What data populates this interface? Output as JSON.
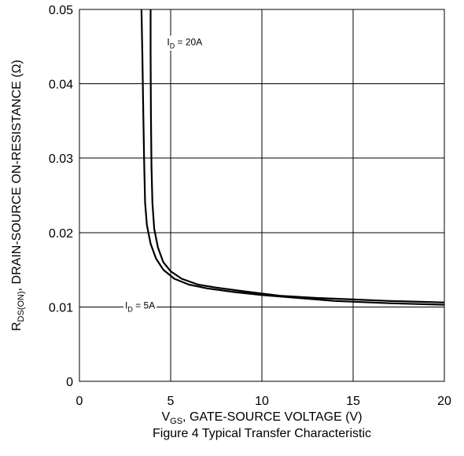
{
  "chart_data": {
    "type": "line",
    "caption": "Figure 4 Typical Transfer Characteristic",
    "xlabel": {
      "main": "V",
      "sub": "GS",
      "rest": ", GATE-SOURCE VOLTAGE (V)"
    },
    "ylabel": {
      "main": "R",
      "sub": "DS(ON)",
      "rest": ",  DRAIN-SOURCE ON-RESISTANCE (Ω)"
    },
    "xlim": [
      0,
      20
    ],
    "ylim": [
      0,
      0.05
    ],
    "xticks": [
      {
        "value": 0,
        "label": "0"
      },
      {
        "value": 5,
        "label": "5"
      },
      {
        "value": 10,
        "label": "10"
      },
      {
        "value": 15,
        "label": "15"
      },
      {
        "value": 20,
        "label": "20"
      }
    ],
    "yticks": [
      {
        "value": 0,
        "label": "0"
      },
      {
        "value": 0.01,
        "label": "0.01"
      },
      {
        "value": 0.02,
        "label": "0.02"
      },
      {
        "value": 0.03,
        "label": "0.03"
      },
      {
        "value": 0.04,
        "label": "0.04"
      },
      {
        "value": 0.05,
        "label": "0.05"
      }
    ],
    "grid": true,
    "series": [
      {
        "name": "ID = 5A",
        "label_main": "I",
        "label_sub": "D",
        "label_rest": " = 5A",
        "x": [
          3.4,
          3.45,
          3.5,
          3.55,
          3.6,
          3.7,
          3.9,
          4.2,
          4.6,
          5.2,
          6.0,
          7.0,
          8.5,
          10.0,
          12.0,
          14.0,
          17.0,
          20.0
        ],
        "y": [
          0.05,
          0.044,
          0.036,
          0.029,
          0.024,
          0.021,
          0.0185,
          0.0165,
          0.015,
          0.0138,
          0.013,
          0.0125,
          0.012,
          0.0116,
          0.0112,
          0.0108,
          0.0105,
          0.0103
        ]
      },
      {
        "name": "ID = 20A",
        "label_main": "I",
        "label_sub": "D",
        "label_rest": " = 20A",
        "x": [
          3.9,
          3.9,
          3.92,
          3.95,
          4.0,
          4.1,
          4.3,
          4.6,
          5.0,
          5.6,
          6.5,
          7.5,
          9.0,
          11.0,
          13.0,
          15.0,
          17.0,
          20.0
        ],
        "y": [
          0.05,
          0.044,
          0.036,
          0.029,
          0.024,
          0.0205,
          0.018,
          0.016,
          0.0148,
          0.0138,
          0.013,
          0.0126,
          0.0121,
          0.0115,
          0.0112,
          0.011,
          0.0108,
          0.0106
        ]
      }
    ]
  }
}
